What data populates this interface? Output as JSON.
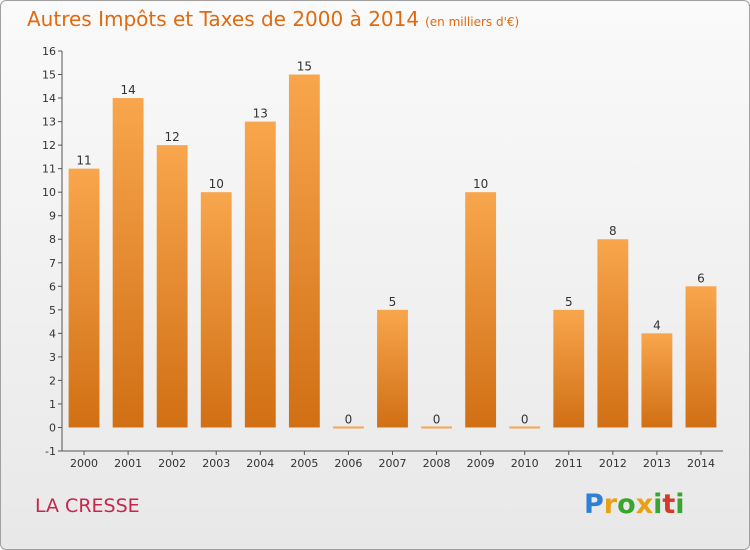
{
  "title": "Autres Impôts et Taxes de 2000 à 2014",
  "title_unit": "(en milliers d'€)",
  "commune": "LA CRESSE",
  "logo": {
    "text": "Proxiti",
    "letters": [
      "P",
      "r",
      "o",
      "x",
      "i",
      "t",
      "i"
    ],
    "colors": [
      "#2f7fd6",
      "#e8a016",
      "#3aa52e",
      "#e8a016",
      "#3aa52e",
      "#d43a2a",
      "#3aa52e"
    ]
  },
  "colors": {
    "bar_top": "#f8a64d",
    "bar_bottom": "#d16f14",
    "title": "#e06a10",
    "commune": "#c8254e"
  },
  "chart_data": {
    "type": "bar",
    "title": "Autres Impôts et Taxes de 2000 à 2014",
    "xlabel": "",
    "ylabel": "",
    "categories": [
      "2000",
      "2001",
      "2002",
      "2003",
      "2004",
      "2005",
      "2006",
      "2007",
      "2008",
      "2009",
      "2010",
      "2011",
      "2012",
      "2013",
      "2014"
    ],
    "values": [
      11,
      14,
      12,
      10,
      13,
      15,
      0,
      5,
      0,
      10,
      0,
      5,
      8,
      4,
      6
    ],
    "value_labels": [
      "11",
      "14",
      "12",
      "10",
      "13",
      "15",
      "0",
      "5",
      "0",
      "10",
      "0",
      "5",
      "8",
      "4",
      "6"
    ],
    "ylim": [
      -1,
      16
    ],
    "yticks": [
      "-1",
      "0",
      "1",
      "2",
      "3",
      "4",
      "5",
      "6",
      "7",
      "8",
      "9",
      "10",
      "11",
      "12",
      "13",
      "14",
      "15",
      "16"
    ],
    "grid": false,
    "legend": "none"
  }
}
